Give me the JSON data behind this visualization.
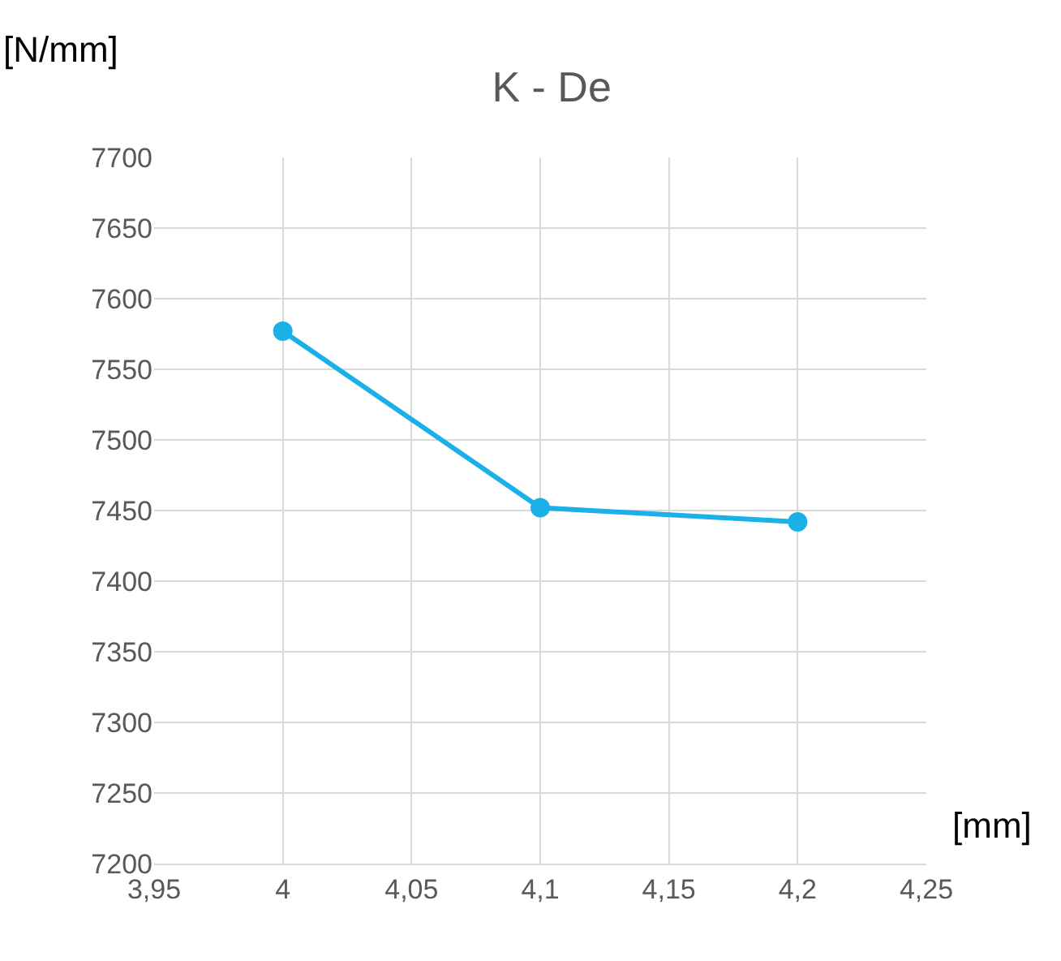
{
  "chart_data": {
    "type": "line",
    "title": "K - De",
    "xlabel": "[mm]",
    "ylabel": "[N/mm]",
    "x": [
      4,
      4.1,
      4.2
    ],
    "series": [
      {
        "color": "#1cb0e8",
        "values": [
          7577,
          7452,
          7442
        ]
      }
    ],
    "xlim": [
      3.95,
      4.25
    ],
    "xticks": [
      {
        "value": 3.95,
        "label": "3,95"
      },
      4,
      {
        "value": 4.05,
        "label": "4,05"
      },
      {
        "value": 4.1,
        "label": "4,1"
      },
      {
        "value": 4.15,
        "label": "4,15"
      },
      {
        "value": 4.2,
        "label": "4,2"
      },
      {
        "value": 4.25,
        "label": "4,25"
      }
    ],
    "ylim": [
      7200,
      7700
    ],
    "yticks": [
      7200,
      7250,
      7300,
      7350,
      7400,
      7450,
      7500,
      7550,
      7600,
      7650,
      7700
    ],
    "grid": true,
    "legend": false,
    "marker": "circle",
    "line_style": "solid"
  }
}
